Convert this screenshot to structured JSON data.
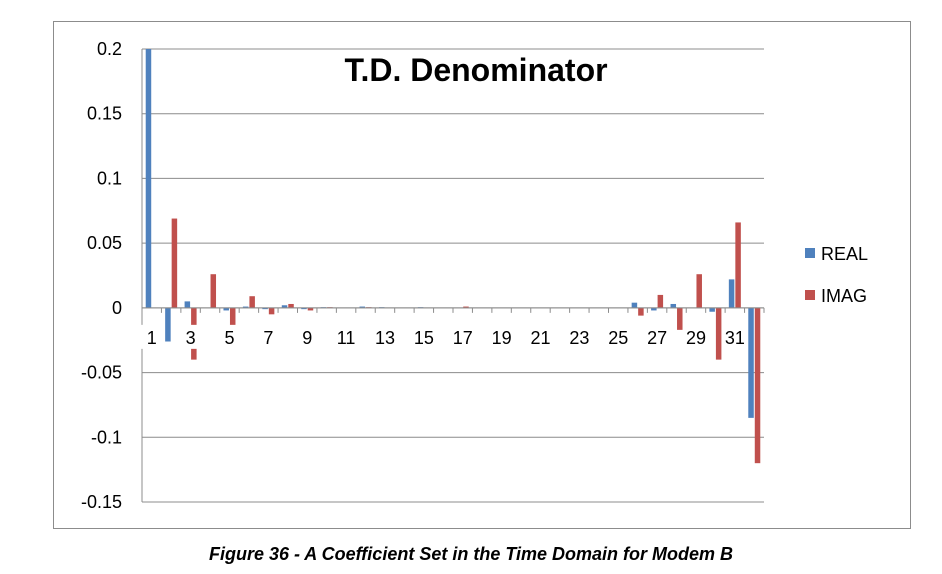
{
  "caption": "Figure 36 - A Coefficient Set in the Time Domain for Modem B",
  "chart_data": {
    "type": "bar",
    "title": "T.D. Denominator",
    "xlabel": "",
    "ylabel": "",
    "ylim": [
      -0.15,
      0.2
    ],
    "yticks": [
      0.2,
      0.15,
      0.1,
      0.05,
      0,
      -0.05,
      -0.1,
      -0.15
    ],
    "ytick_labels": [
      "0.2",
      "0.15",
      "0.1",
      "0.05",
      "0",
      "-0.05",
      "-0.1",
      "-0.15"
    ],
    "grid": "horizontal",
    "legend_position": "right",
    "categories": [
      1,
      2,
      3,
      4,
      5,
      6,
      7,
      8,
      9,
      10,
      11,
      12,
      13,
      14,
      15,
      16,
      17,
      18,
      19,
      20,
      21,
      22,
      23,
      24,
      25,
      26,
      27,
      28,
      29,
      30,
      31,
      32
    ],
    "xtick_labels": [
      "1",
      "",
      "3",
      "",
      "5",
      "",
      "7",
      "",
      "9",
      "",
      "11",
      "",
      "13",
      "",
      "15",
      "",
      "17",
      "",
      "19",
      "",
      "21",
      "",
      "23",
      "",
      "25",
      "",
      "27",
      "",
      "29",
      "",
      "31",
      ""
    ],
    "series": [
      {
        "name": "REAL",
        "color": "#4f81bd",
        "values": [
          0.2,
          -0.026,
          0.005,
          0.0,
          -0.002,
          0.001,
          -0.001,
          0.002,
          -0.001,
          0.0005,
          0.0,
          0.001,
          0.0005,
          0.0,
          0.0005,
          0.0,
          0.0,
          0.0,
          0.0,
          0.0,
          0.0,
          0.0,
          0.0,
          0.0,
          0.0,
          0.004,
          -0.002,
          0.003,
          0.0,
          -0.003,
          0.022,
          -0.085
        ]
      },
      {
        "name": "IMAG",
        "color": "#c0504d",
        "values": [
          0.0,
          0.069,
          -0.04,
          0.026,
          -0.015,
          0.009,
          -0.005,
          0.003,
          -0.002,
          0.0005,
          0.0,
          0.0005,
          0.0,
          0.0,
          0.0,
          0.0,
          0.001,
          0.0,
          0.0,
          0.0,
          0.0,
          0.0,
          0.0,
          0.0,
          0.0,
          -0.006,
          0.01,
          -0.017,
          0.026,
          -0.04,
          0.066,
          -0.12
        ]
      }
    ]
  }
}
